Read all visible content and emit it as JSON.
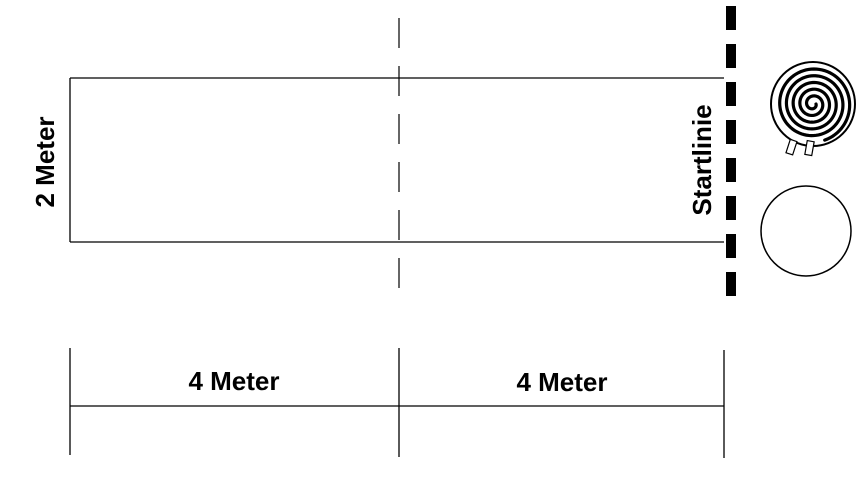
{
  "labels": {
    "width_label": "2 Meter",
    "start_line_label": "Startlinie",
    "segment_left_label": "4 Meter",
    "segment_right_label": "4 Meter"
  },
  "colors": {
    "line": "#000000",
    "background": "#ffffff"
  },
  "icons": {
    "coiled_rope": "coiled-rope-icon",
    "circle": "circle-icon"
  }
}
